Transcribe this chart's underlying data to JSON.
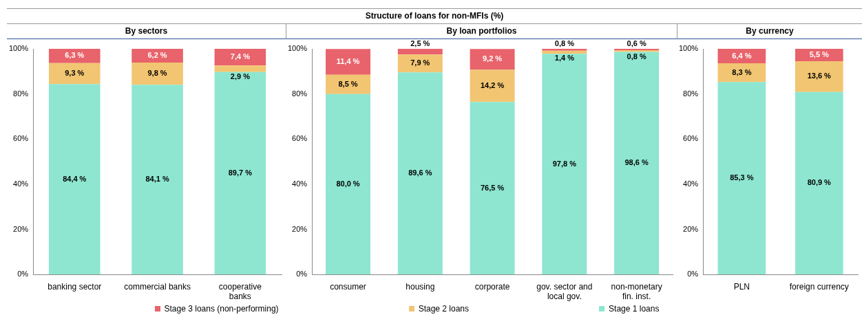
{
  "chart_data": [
    {
      "type": "bar",
      "subtitle": "By sectors",
      "categories": [
        "banking sector",
        "commercial banks",
        "cooperative banks"
      ],
      "stacked": true,
      "legend": "bottom",
      "ylim": [
        0,
        100
      ],
      "yticks": [
        {
          "value": 0,
          "label": "0%"
        },
        {
          "value": 20,
          "label": "20%"
        },
        {
          "value": 40,
          "label": "40%"
        },
        {
          "value": 60,
          "label": "60%"
        },
        {
          "value": 80,
          "label": "80%"
        },
        {
          "value": 100,
          "label": "100%"
        }
      ],
      "series": [
        {
          "name": "Stage 1 loans",
          "color": "#8ee6d0",
          "values": [
            84.4,
            84.1,
            89.7
          ],
          "value_labels": [
            "84,4 %",
            "84,1 %",
            "89,7 %"
          ]
        },
        {
          "name": "Stage 2 loans",
          "color": "#f2c572",
          "values": [
            9.3,
            9.8,
            2.9
          ],
          "value_labels": [
            "9,3 %",
            "9,8 %",
            "2,9 %"
          ]
        },
        {
          "name": "Stage 3 loans (non-performing)",
          "color": "#e8636b",
          "values": [
            6.3,
            6.2,
            7.4
          ],
          "value_labels": [
            "6,3 %",
            "6,2 %",
            "7,4 %"
          ]
        }
      ]
    },
    {
      "type": "bar",
      "title": "Structure of loans for non-MFIs (%)",
      "subtitle": "By loan portfolios",
      "categories": [
        "consumer",
        "housing",
        "corporate",
        "gov. sector and local gov.",
        "non-monetary fin. inst."
      ],
      "stacked": true,
      "ylim": [
        0,
        100
      ],
      "yticks": [
        {
          "value": 0,
          "label": "0%"
        },
        {
          "value": 20,
          "label": "20%"
        },
        {
          "value": 40,
          "label": "40%"
        },
        {
          "value": 60,
          "label": "60%"
        },
        {
          "value": 80,
          "label": "80%"
        },
        {
          "value": 100,
          "label": "100%"
        }
      ],
      "series": [
        {
          "color": "#8ee6d0",
          "values": [
            80.0,
            89.6,
            76.5,
            97.8,
            98.6
          ],
          "value_labels": [
            "80,0 %",
            "89,6 %",
            "76,5 %",
            "97,8 %",
            "98,6 %"
          ]
        },
        {
          "color": "#f2c572",
          "values": [
            8.5,
            7.9,
            14.2,
            1.4,
            0.8
          ],
          "value_labels": [
            "8,5 %",
            "7,9 %",
            "14,2 %",
            "1,4 %",
            "0,8 %"
          ]
        },
        {
          "color": "#e8636b",
          "values": [
            11.4,
            2.5,
            9.2,
            0.8,
            0.6
          ],
          "value_labels": [
            "11,4 %",
            "2,5 %",
            "9,2 %",
            "0,8 %",
            "0,6 %"
          ]
        }
      ]
    },
    {
      "type": "bar",
      "subtitle": "By currency",
      "categories": [
        "PLN",
        "foreign currency"
      ],
      "stacked": true,
      "ylim": [
        0,
        100
      ],
      "yticks": [
        {
          "value": 0,
          "label": "0%"
        },
        {
          "value": 20,
          "label": "20%"
        },
        {
          "value": 40,
          "label": "40%"
        },
        {
          "value": 60,
          "label": "60%"
        },
        {
          "value": 80,
          "label": "80%"
        },
        {
          "value": 100,
          "label": "100%"
        }
      ],
      "series": [
        {
          "color": "#8ee6d0",
          "values": [
            85.3,
            80.9
          ],
          "value_labels": [
            "85,3 %",
            "80,9 %"
          ]
        },
        {
          "color": "#f2c572",
          "values": [
            8.3,
            13.6
          ],
          "value_labels": [
            "8,3 %",
            "13,6 %"
          ]
        },
        {
          "color": "#e8636b",
          "values": [
            6.4,
            5.5
          ],
          "value_labels": [
            "6,4 %",
            "5,5 %"
          ]
        }
      ]
    }
  ]
}
